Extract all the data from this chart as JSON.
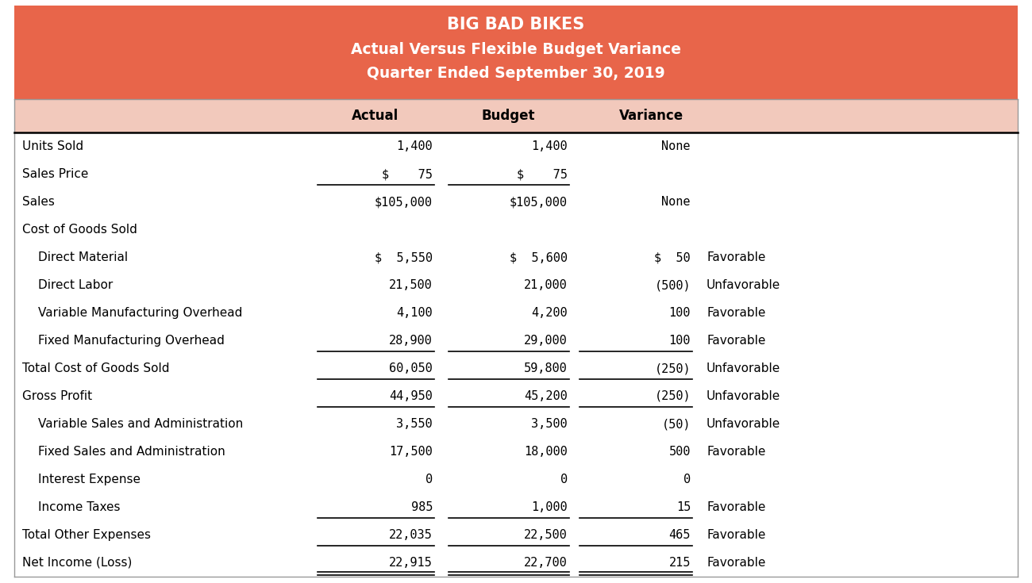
{
  "title_line1": "BIG BAD BIKES",
  "title_line2": "Actual Versus Flexible Budget Variance",
  "title_line3": "Quarter Ended September 30, 2019",
  "header_bg": "#E8654A",
  "header_text_color": "#FFFFFF",
  "col_header_bg": "#F2C9BC",
  "table_bg": "#FFFFFF",
  "rows": [
    {
      "label": "Units Sold",
      "actual": "1,400",
      "budget": "1,400",
      "variance": "None",
      "fav": "",
      "ul_actual": false,
      "ul_budget": false,
      "ul_variance": false,
      "dbl_actual": false,
      "dbl_budget": false,
      "dbl_variance": false,
      "indent": false,
      "label_bold": false
    },
    {
      "label": "Sales Price",
      "actual": "$    75",
      "budget": "$    75",
      "variance": "",
      "fav": "",
      "ul_actual": true,
      "ul_budget": true,
      "ul_variance": false,
      "dbl_actual": false,
      "dbl_budget": false,
      "dbl_variance": false,
      "indent": false,
      "label_bold": false
    },
    {
      "label": "Sales",
      "actual": "$105,000",
      "budget": "$105,000",
      "variance": "None",
      "fav": "",
      "ul_actual": false,
      "ul_budget": false,
      "ul_variance": false,
      "dbl_actual": false,
      "dbl_budget": false,
      "dbl_variance": false,
      "indent": false,
      "label_bold": false
    },
    {
      "label": "Cost of Goods Sold",
      "actual": "",
      "budget": "",
      "variance": "",
      "fav": "",
      "ul_actual": false,
      "ul_budget": false,
      "ul_variance": false,
      "dbl_actual": false,
      "dbl_budget": false,
      "dbl_variance": false,
      "indent": false,
      "label_bold": false
    },
    {
      "label": "Direct Material",
      "actual": "$  5,550",
      "budget": "$  5,600",
      "variance": "$  50",
      "fav": "Favorable",
      "ul_actual": false,
      "ul_budget": false,
      "ul_variance": false,
      "dbl_actual": false,
      "dbl_budget": false,
      "dbl_variance": false,
      "indent": true,
      "label_bold": false
    },
    {
      "label": "Direct Labor",
      "actual": "21,500",
      "budget": "21,000",
      "variance": "(500)",
      "fav": "Unfavorable",
      "ul_actual": false,
      "ul_budget": false,
      "ul_variance": false,
      "dbl_actual": false,
      "dbl_budget": false,
      "dbl_variance": false,
      "indent": true,
      "label_bold": false
    },
    {
      "label": "Variable Manufacturing Overhead",
      "actual": "4,100",
      "budget": "4,200",
      "variance": "100",
      "fav": "Favorable",
      "ul_actual": false,
      "ul_budget": false,
      "ul_variance": false,
      "dbl_actual": false,
      "dbl_budget": false,
      "dbl_variance": false,
      "indent": true,
      "label_bold": false
    },
    {
      "label": "Fixed Manufacturing Overhead",
      "actual": "28,900",
      "budget": "29,000",
      "variance": "100",
      "fav": "Favorable",
      "ul_actual": true,
      "ul_budget": true,
      "ul_variance": true,
      "dbl_actual": false,
      "dbl_budget": false,
      "dbl_variance": false,
      "indent": true,
      "label_bold": false
    },
    {
      "label": "Total Cost of Goods Sold",
      "actual": "60,050",
      "budget": "59,800",
      "variance": "(250)",
      "fav": "Unfavorable",
      "ul_actual": true,
      "ul_budget": true,
      "ul_variance": true,
      "dbl_actual": false,
      "dbl_budget": false,
      "dbl_variance": false,
      "indent": false,
      "label_bold": false
    },
    {
      "label": "Gross Profit",
      "actual": "44,950",
      "budget": "45,200",
      "variance": "(250)",
      "fav": "Unfavorable",
      "ul_actual": true,
      "ul_budget": true,
      "ul_variance": true,
      "dbl_actual": false,
      "dbl_budget": false,
      "dbl_variance": false,
      "indent": false,
      "label_bold": false
    },
    {
      "label": "Variable Sales and Administration",
      "actual": "3,550",
      "budget": "3,500",
      "variance": "(50)",
      "fav": "Unfavorable",
      "ul_actual": false,
      "ul_budget": false,
      "ul_variance": false,
      "dbl_actual": false,
      "dbl_budget": false,
      "dbl_variance": false,
      "indent": true,
      "label_bold": false
    },
    {
      "label": "Fixed Sales and Administration",
      "actual": "17,500",
      "budget": "18,000",
      "variance": "500",
      "fav": "Favorable",
      "ul_actual": false,
      "ul_budget": false,
      "ul_variance": false,
      "dbl_actual": false,
      "dbl_budget": false,
      "dbl_variance": false,
      "indent": true,
      "label_bold": false
    },
    {
      "label": "Interest Expense",
      "actual": "0",
      "budget": "0",
      "variance": "0",
      "fav": "",
      "ul_actual": false,
      "ul_budget": false,
      "ul_variance": false,
      "dbl_actual": false,
      "dbl_budget": false,
      "dbl_variance": false,
      "indent": true,
      "label_bold": false
    },
    {
      "label": "Income Taxes",
      "actual": "985",
      "budget": "1,000",
      "variance": "15",
      "fav": "Favorable",
      "ul_actual": true,
      "ul_budget": true,
      "ul_variance": true,
      "dbl_actual": false,
      "dbl_budget": false,
      "dbl_variance": false,
      "indent": true,
      "label_bold": false
    },
    {
      "label": "Total Other Expenses",
      "actual": "22,035",
      "budget": "22,500",
      "variance": "465",
      "fav": "Favorable",
      "ul_actual": true,
      "ul_budget": true,
      "ul_variance": true,
      "dbl_actual": false,
      "dbl_budget": false,
      "dbl_variance": false,
      "indent": false,
      "label_bold": false
    },
    {
      "label": "Net Income (Loss)",
      "actual": "22,915",
      "budget": "22,700",
      "variance": "215",
      "fav": "Favorable",
      "ul_actual": false,
      "ul_budget": false,
      "ul_variance": false,
      "dbl_actual": true,
      "dbl_budget": true,
      "dbl_variance": true,
      "indent": false,
      "label_bold": false
    }
  ]
}
